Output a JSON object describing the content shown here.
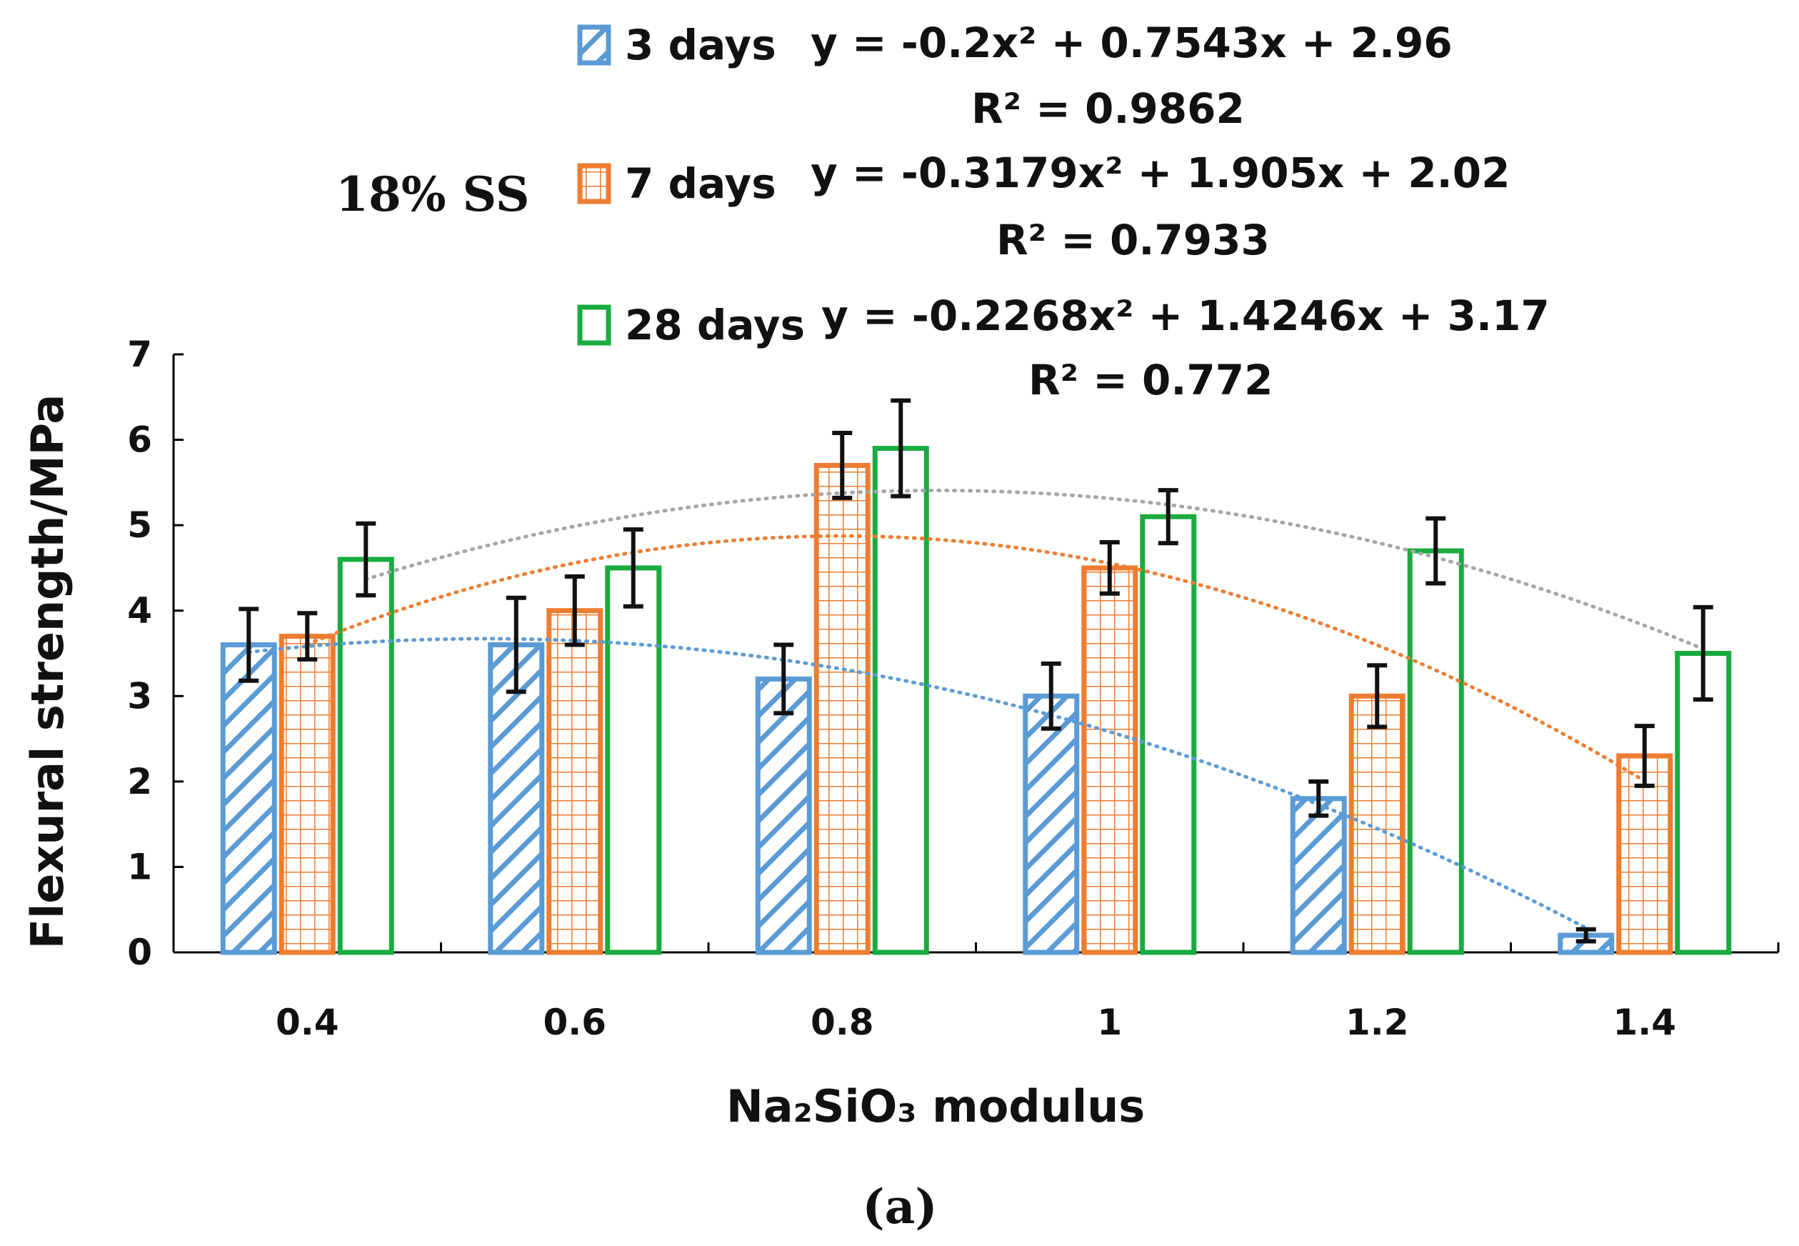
{
  "chart_data": {
    "type": "bar",
    "annotation": "18% SS",
    "caption": "(a)",
    "xlabel": "Na₂SiO₃ modulus",
    "ylabel": "Flexural strength/MPa",
    "ylim": [
      0,
      7
    ],
    "yticks": [
      "0",
      "1",
      "2",
      "3",
      "4",
      "5",
      "6",
      "7"
    ],
    "categories": [
      "0.4",
      "0.6",
      "0.8",
      "1",
      "1.2",
      "1.4"
    ],
    "series": [
      {
        "name": "3 days",
        "color": "#5b9bd5",
        "pattern": "diagonal",
        "values": [
          3.6,
          3.6,
          3.2,
          3.0,
          1.8,
          0.2
        ],
        "errors": [
          0.42,
          0.55,
          0.4,
          0.38,
          0.2,
          0.07
        ],
        "trend_coefficients": [
          -0.2,
          0.7543,
          2.96
        ],
        "equation": "y = -0.2x² + 0.7543x + 2.96",
        "r2": "R² = 0.9862"
      },
      {
        "name": "7 days",
        "color": "#ed7d31",
        "pattern": "grid",
        "values": [
          3.7,
          4.0,
          5.7,
          4.5,
          3.0,
          2.3
        ],
        "errors": [
          0.27,
          0.4,
          0.38,
          0.3,
          0.36,
          0.35
        ],
        "trend_coefficients": [
          -0.3179,
          1.905,
          2.02
        ],
        "equation": "y = -0.3179x² + 1.905x + 2.02",
        "r2": "R² = 0.7933"
      },
      {
        "name": "28 days",
        "color": "#1aab40",
        "pattern": "none",
        "values": [
          4.6,
          4.5,
          5.9,
          5.1,
          4.7,
          3.5
        ],
        "errors": [
          0.42,
          0.45,
          0.56,
          0.31,
          0.38,
          0.54
        ],
        "trend_coefficients": [
          -0.2268,
          1.4246,
          3.17
        ],
        "equation": "y = -0.2268x² + 1.4246x + 3.17",
        "r2": "R² = 0.772"
      }
    ],
    "trendline_color_28d": "#a6a6a6",
    "error_bar_color": "#111111"
  }
}
